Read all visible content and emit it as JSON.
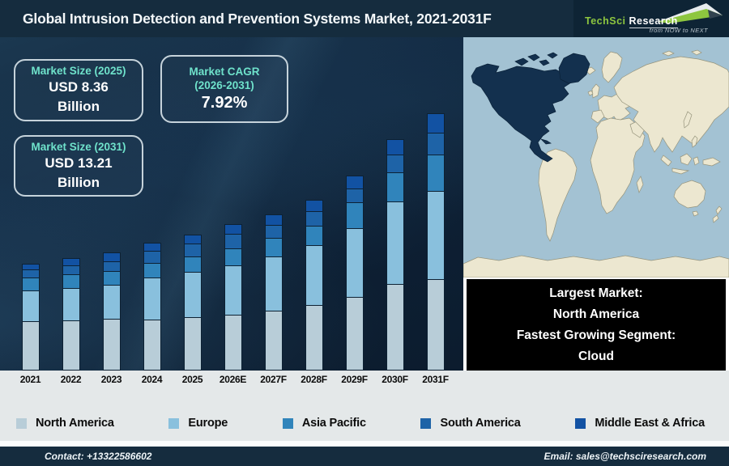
{
  "header": {
    "title": "Global Intrusion Detection and Prevention Systems Market, 2021-2031F",
    "logo": {
      "name_part1": "TechSci",
      "name_part2": "Research",
      "tagline": "from NOW to NEXT",
      "accent_color": "#8dc63f"
    }
  },
  "stats": [
    {
      "label_lines": [
        "Market Size (2025)"
      ],
      "value_lines": [
        "USD 8.36",
        "Billion"
      ],
      "large_value": false
    },
    {
      "label_lines": [
        "Market CAGR",
        "(2026-2031)"
      ],
      "value_lines": [
        "7.92%"
      ],
      "large_value": true
    },
    {
      "label_lines": [
        "Market Size (2031)"
      ],
      "value_lines": [
        "USD 13.21",
        "Billion"
      ],
      "large_value": false
    }
  ],
  "chart_data": {
    "type": "bar",
    "stacked": true,
    "title": "Global Intrusion Detection and Prevention Systems Market, 2021-2031F",
    "categories": [
      "2021",
      "2022",
      "2023",
      "2024",
      "2025",
      "2026E",
      "2027F",
      "2028F",
      "2029F",
      "2030F",
      "2031F"
    ],
    "series": [
      {
        "name": "North America",
        "color": "#b8cdd8",
        "values": [
          61,
          62,
          64,
          63,
          66,
          69,
          74,
          81,
          91,
          107,
          113
        ]
      },
      {
        "name": "Europe",
        "color": "#89c0dd",
        "values": [
          39,
          41,
          43,
          53,
          57,
          62,
          68,
          75,
          86,
          103,
          110
        ]
      },
      {
        "name": "Asia Pacific",
        "color": "#3084bb",
        "values": [
          17,
          18,
          18,
          19,
          20,
          22,
          24,
          25,
          33,
          37,
          46
        ]
      },
      {
        "name": "South America",
        "color": "#1e63a7",
        "values": [
          11,
          12,
          13,
          16,
          17,
          19,
          17,
          19,
          18,
          23,
          28
        ]
      },
      {
        "name": "Middle East & Africa",
        "color": "#1252a3",
        "values": [
          8,
          10,
          12,
          11,
          12,
          13,
          14,
          15,
          17,
          20,
          25
        ]
      }
    ],
    "value_unit": "relative bar height (no value axis shown)",
    "labeled_totals_usd_billion": {
      "2025": 8.36,
      "2031": 13.21
    },
    "cagr_2026_2031_percent": 7.92,
    "legend_position": "bottom",
    "grid": false
  },
  "map": {
    "highlighted_region": "North America",
    "ocean_color": "#a3c2d3",
    "land_color": "#ece7d0",
    "land_stroke": "#96947c",
    "highlight_color": "#13304e"
  },
  "map_caption": {
    "lines": [
      "Largest Market:",
      "North America",
      "Fastest Growing Segment:",
      "Cloud"
    ]
  },
  "footer": {
    "contact": "Contact: +13322586602",
    "email": "Email: sales@techsciresearch.com"
  },
  "colors": {
    "header_bg": "#152c3e",
    "panel_bg": "#0e2236",
    "stat_label": "#6fe2cb",
    "legend_bg": "#e4e8e9"
  }
}
